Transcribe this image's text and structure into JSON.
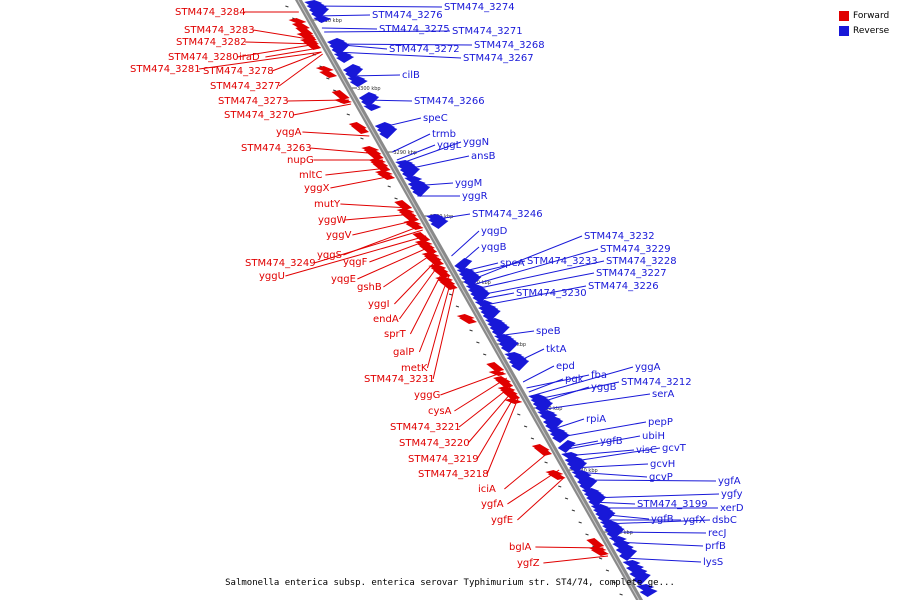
{
  "caption": "Salmonella enterica subsp. enterica serovar Typhimurium str. ST4/74, complete ge...",
  "legend": [
    {
      "label": "Forward",
      "color": "#e00000"
    },
    {
      "label": "Reverse",
      "color": "#1818d8"
    }
  ],
  "colors": {
    "forward": "#e00000",
    "reverse": "#1818d8",
    "backbone": "#888888"
  },
  "ticks": [
    "3310 kbp",
    "3300 kbp",
    "3290 kbp",
    "3280 kbp",
    "3270 kbp",
    "3260 kbp",
    "3250 kbp",
    "3240 kbp",
    "3230 kbp"
  ],
  "forward_labels": [
    "STM474_3284",
    "STM474_3283",
    "STM474_3282",
    "STM474_3280",
    "iraD",
    "STM474_3281",
    "STM474_3278",
    "STM474_3277",
    "STM474_3273",
    "STM474_3270",
    "yqgA",
    "STM474_3263",
    "nupG",
    "mltC",
    "yggX",
    "mutY",
    "yggW",
    "yggV",
    "yggS",
    "STM474_3249",
    "yqgF",
    "yggU",
    "yqgE",
    "gshB",
    "yggI",
    "endA",
    "sprT",
    "galP",
    "metK",
    "STM474_3231",
    "yggG",
    "cysA",
    "STM474_3221",
    "STM474_3220",
    "STM474_3219",
    "STM474_3218",
    "iciA",
    "ygfA",
    "ygfE",
    "bglA",
    "ygfZ"
  ],
  "reverse_labels": [
    "STM474_3274",
    "STM474_3276",
    "STM474_3275",
    "STM474_3271",
    "STM474_3272",
    "STM474_3268",
    "STM474_3267",
    "cilB",
    "STM474_3266",
    "speC",
    "trmb",
    "yggL",
    "yggN",
    "ansB",
    "yggM",
    "yggR",
    "STM474_3246",
    "yqgD",
    "yqgB",
    "speA",
    "STM474_3233",
    "STM474_3232",
    "STM474_3229",
    "STM474_3228",
    "STM474_3227",
    "STM474_3230",
    "STM474_3226",
    "speB",
    "tktA",
    "epd",
    "pgk",
    "fba",
    "yggA",
    "STM474_3212",
    "yggB",
    "serA",
    "rpiA",
    "pepP",
    "ygfB",
    "ubiH",
    "visC",
    "gcvT",
    "gcvH",
    "gcvP",
    "ygfA",
    "STM474_3199",
    "ygfy",
    "xerD",
    "ygfB",
    "ygfX",
    "dsbC",
    "recJ",
    "prfB",
    "lysS"
  ]
}
